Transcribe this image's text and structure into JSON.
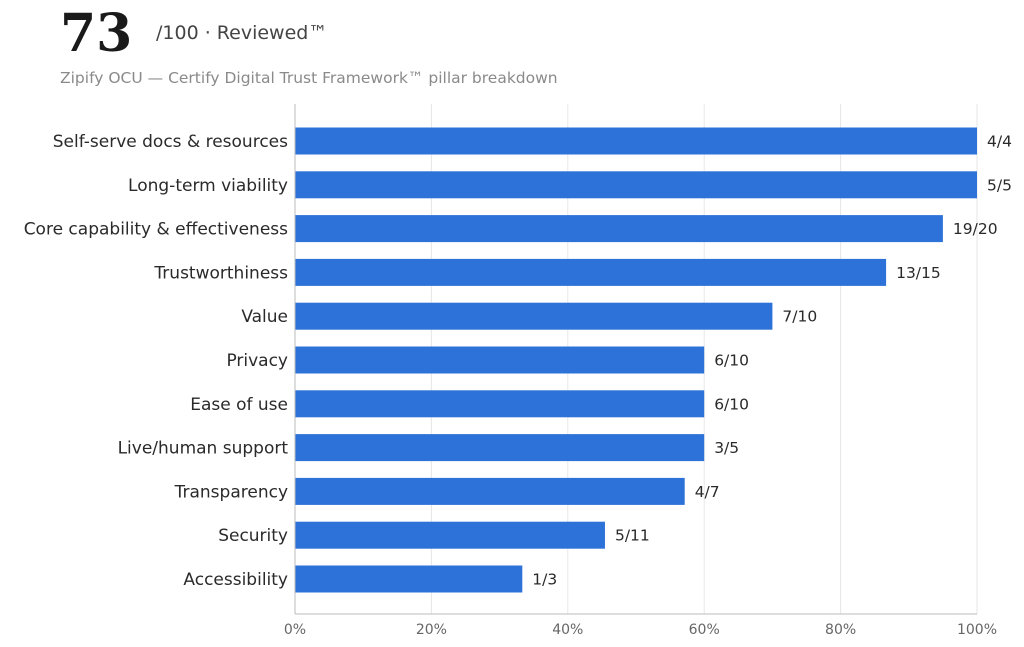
{
  "header": {
    "score": "73",
    "score_suffix": "/100 · Reviewed™",
    "subtitle": "Zipify OCU — Certify Digital Trust Framework™ pillar breakdown"
  },
  "colors": {
    "bar": "#2d72d9",
    "grid": "#e6e6e6",
    "axis": "#bbbbbb"
  },
  "chart_data": {
    "type": "bar",
    "orientation": "horizontal",
    "categories": [
      "Self-serve docs & resources",
      "Long-term viability",
      "Core capability & effectiveness",
      "Trustworthiness",
      "Value",
      "Privacy",
      "Ease of use",
      "Live/human support",
      "Transparency",
      "Security",
      "Accessibility"
    ],
    "values": [
      100,
      100,
      95,
      86.67,
      70,
      60,
      60,
      60,
      57.14,
      45.45,
      33.33
    ],
    "value_labels": [
      "4/4",
      "5/5",
      "19/20",
      "13/15",
      "7/10",
      "6/10",
      "6/10",
      "3/5",
      "4/7",
      "5/11",
      "1/3"
    ],
    "xlim": [
      0,
      100
    ],
    "xticks": [
      0,
      20,
      40,
      60,
      80,
      100
    ],
    "xtick_labels": [
      "0%",
      "20%",
      "40%",
      "60%",
      "80%",
      "100%"
    ],
    "grid": true,
    "legend": "none"
  }
}
